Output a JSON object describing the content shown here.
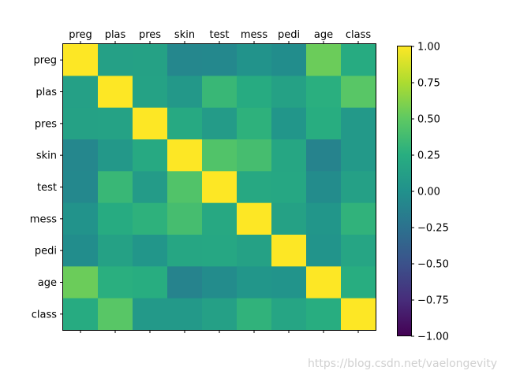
{
  "chart_data": {
    "type": "heatmap",
    "title": "",
    "xlabel": "",
    "ylabel": "",
    "labels": [
      "preg",
      "plas",
      "pres",
      "skin",
      "test",
      "mess",
      "pedi",
      "age",
      "class"
    ],
    "matrix": [
      [
        1.0,
        0.13,
        0.14,
        -0.08,
        -0.07,
        0.02,
        -0.03,
        0.54,
        0.22
      ],
      [
        0.13,
        1.0,
        0.15,
        0.06,
        0.33,
        0.22,
        0.14,
        0.26,
        0.47
      ],
      [
        0.14,
        0.15,
        1.0,
        0.21,
        0.09,
        0.28,
        0.04,
        0.24,
        0.07
      ],
      [
        -0.08,
        0.06,
        0.21,
        1.0,
        0.44,
        0.39,
        0.18,
        -0.11,
        0.07
      ],
      [
        -0.07,
        0.33,
        0.09,
        0.44,
        1.0,
        0.2,
        0.19,
        -0.04,
        0.13
      ],
      [
        0.02,
        0.22,
        0.28,
        0.39,
        0.2,
        1.0,
        0.14,
        0.04,
        0.29
      ],
      [
        -0.03,
        0.14,
        0.04,
        0.18,
        0.19,
        0.14,
        1.0,
        0.03,
        0.17
      ],
      [
        0.54,
        0.26,
        0.24,
        -0.11,
        -0.04,
        0.04,
        0.03,
        1.0,
        0.24
      ],
      [
        0.22,
        0.47,
        0.07,
        0.07,
        0.13,
        0.29,
        0.17,
        0.24,
        1.0
      ]
    ],
    "vmin": -1.0,
    "vmax": 1.0,
    "colormap": "viridis",
    "colorbar_ticks": [
      "1.00",
      "0.75",
      "0.50",
      "0.25",
      "0.00",
      "−0.25",
      "−0.50",
      "−0.75",
      "−1.00"
    ],
    "colorbar_tick_values": [
      1.0,
      0.75,
      0.5,
      0.25,
      0.0,
      -0.25,
      -0.5,
      -0.75,
      -1.0
    ],
    "x_tick_position": "top",
    "grid": false
  },
  "watermark": "https://blog.csdn.net/vaelongevity"
}
